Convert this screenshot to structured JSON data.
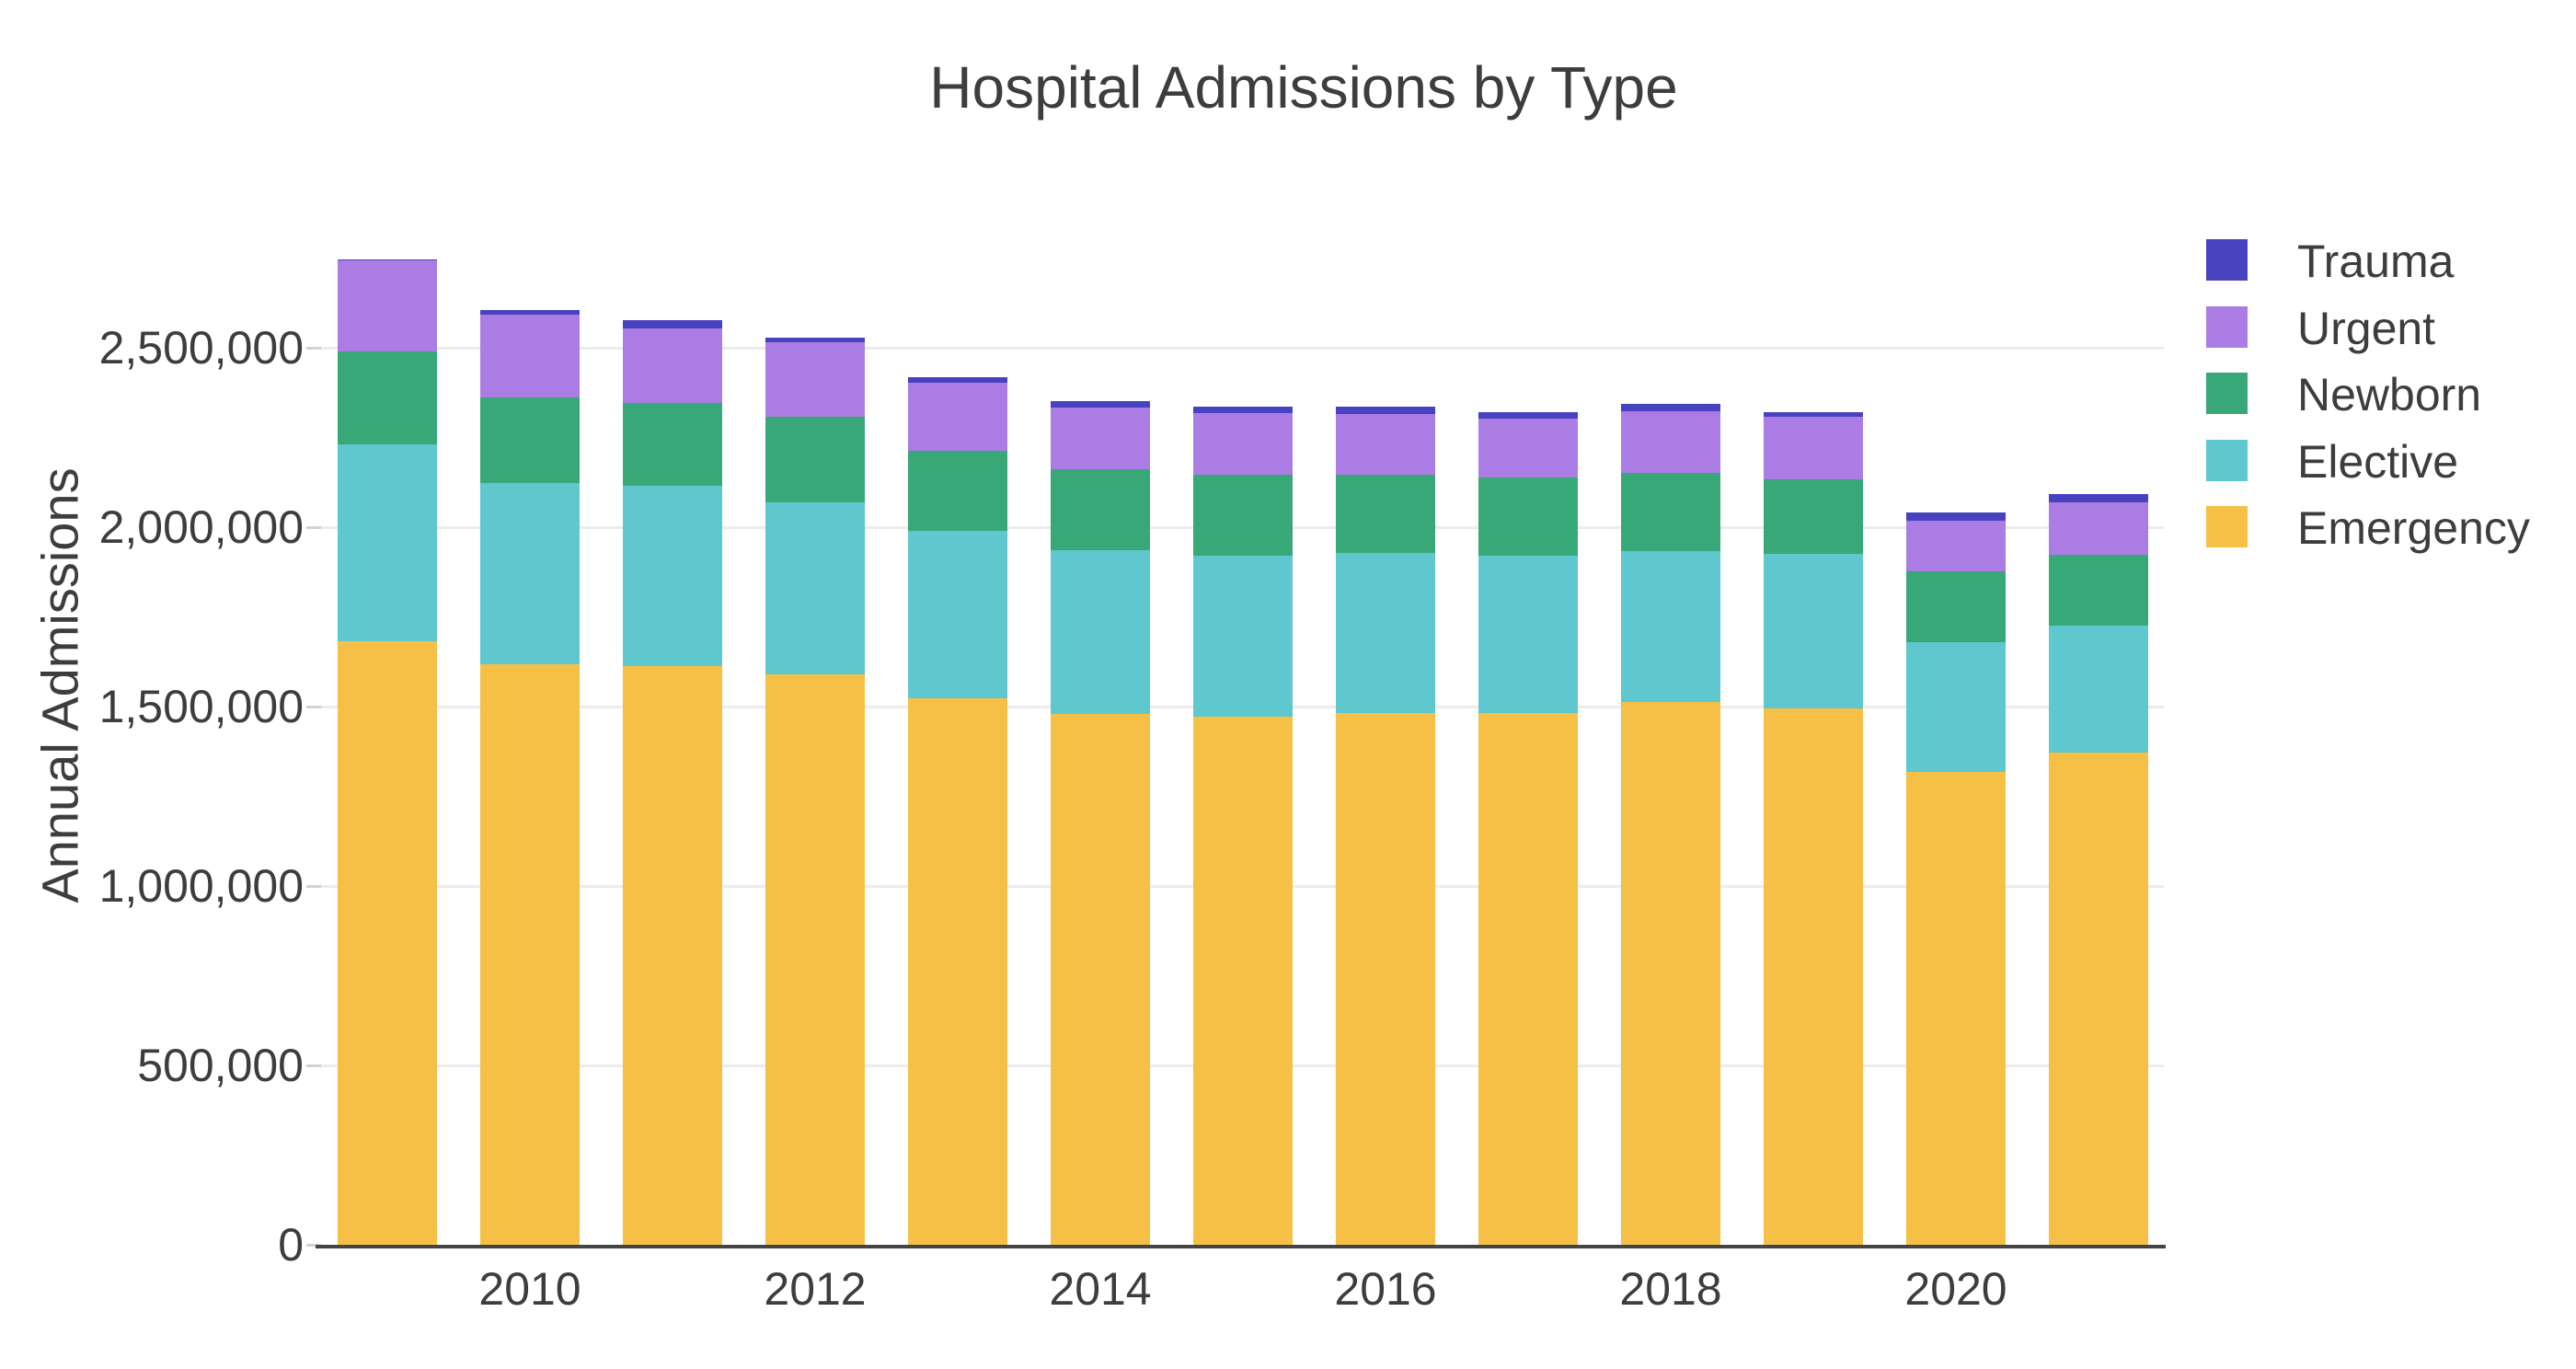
{
  "title": "Hospital Admissions by Type",
  "y_axis_label": "Annual Admissions",
  "legend": {
    "position": "right",
    "items": [
      {
        "label": "Trauma",
        "color": "#4842C0"
      },
      {
        "label": "Urgent",
        "color": "#AB7DE4"
      },
      {
        "label": "Newborn",
        "color": "#39A878"
      },
      {
        "label": "Elective",
        "color": "#5FC7CE"
      },
      {
        "label": "Emergency",
        "color": "#F6C046"
      }
    ]
  },
  "chart_data": {
    "type": "bar",
    "stacked": true,
    "title": "Hospital Admissions by Type",
    "xlabel": "",
    "ylabel": "Annual Admissions",
    "categories": [
      2009,
      2010,
      2011,
      2012,
      2013,
      2014,
      2015,
      2016,
      2017,
      2018,
      2019,
      2020,
      2021
    ],
    "series": [
      {
        "name": "Emergency",
        "color": "#F6C046",
        "values": [
          1682000,
          1618000,
          1613000,
          1590000,
          1523000,
          1480000,
          1472000,
          1482000,
          1482000,
          1513000,
          1495000,
          1318000,
          1372000
        ]
      },
      {
        "name": "Elective",
        "color": "#5FC7CE",
        "values": [
          549000,
          505000,
          502000,
          479000,
          467000,
          456000,
          449000,
          446000,
          439000,
          420000,
          431000,
          362000,
          354000
        ]
      },
      {
        "name": "Newborn",
        "color": "#39A878",
        "values": [
          259000,
          238000,
          231000,
          239000,
          223000,
          225000,
          225000,
          218000,
          217000,
          218000,
          207000,
          197000,
          197000
        ]
      },
      {
        "name": "Urgent",
        "color": "#AB7DE4",
        "values": [
          253000,
          231000,
          208000,
          207000,
          190000,
          172000,
          172000,
          169000,
          165000,
          172000,
          175000,
          141000,
          146000
        ]
      },
      {
        "name": "Trauma",
        "color": "#4842C0",
        "values": [
          4000,
          14000,
          23000,
          13000,
          15000,
          18000,
          18000,
          21000,
          17000,
          21000,
          13000,
          23000,
          23000
        ]
      }
    ],
    "ylim": [
      0,
      2900000
    ],
    "grid": true,
    "legend_position": "right",
    "y_ticks": {
      "values": [
        0,
        500000,
        1000000,
        1500000,
        2000000,
        2500000
      ],
      "labels": [
        "0",
        "500,000",
        "1,000,000",
        "1,500,000",
        "2,000,000",
        "2,500,000"
      ]
    },
    "x_ticks": {
      "values": [
        2010,
        2012,
        2014,
        2016,
        2018,
        2020
      ],
      "labels": [
        "2010",
        "2012",
        "2014",
        "2016",
        "2018",
        "2020"
      ]
    }
  }
}
